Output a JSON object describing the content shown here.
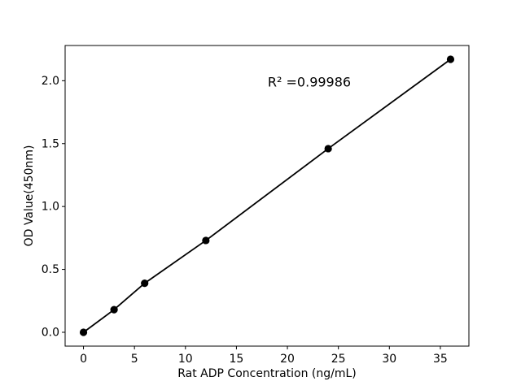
{
  "figure": {
    "background_color": "#ffffff",
    "foreground_color": "#000000"
  },
  "chart_data": {
    "type": "line",
    "title": "",
    "xlabel": "Rat ADP Concentration (ng/mL)",
    "ylabel": "OD Value(450nm)",
    "series": [
      {
        "name": "standard-curve",
        "x": [
          0,
          3,
          6,
          12,
          24,
          36
        ],
        "y": [
          0.0,
          0.18,
          0.39,
          0.73,
          1.46,
          2.17
        ],
        "marker": "circle",
        "line_color": "#000000",
        "marker_color": "#000000"
      }
    ],
    "annotation": {
      "text": "R² =0.99986",
      "x": 22.1,
      "y": 1.99
    },
    "xlim": [
      -1.8,
      37.8
    ],
    "ylim": [
      -0.11,
      2.28
    ],
    "xticks": {
      "values": [
        0,
        5,
        10,
        15,
        20,
        25,
        30,
        35
      ],
      "labels": [
        "0",
        "5",
        "10",
        "15",
        "20",
        "25",
        "30",
        "35"
      ]
    },
    "yticks": {
      "values": [
        0,
        0.5,
        1.0,
        1.5,
        2.0
      ],
      "labels": [
        "0.0",
        "0.5",
        "1.0",
        "1.5",
        "2.0"
      ]
    },
    "grid": false,
    "legend": null
  }
}
